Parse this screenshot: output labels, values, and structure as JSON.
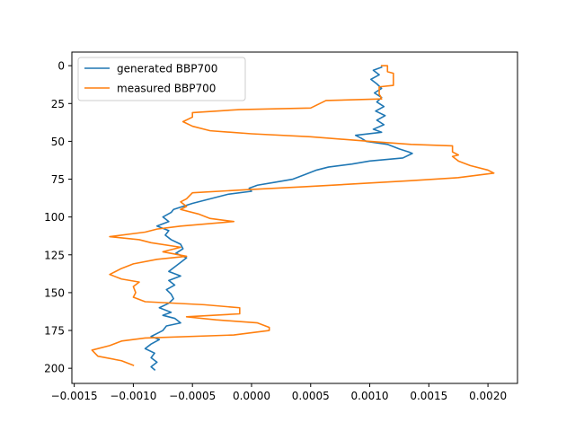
{
  "chart_data": {
    "type": "line",
    "title": "",
    "xlabel": "",
    "ylabel": "",
    "orientation": "depth-profile (y axis inverted)",
    "xlim": [
      -0.00152,
      0.00225
    ],
    "ylim": [
      210,
      -9
    ],
    "x_ticks": [
      -0.0015,
      -0.001,
      -0.0005,
      0.0,
      0.0005,
      0.001,
      0.0015,
      0.002
    ],
    "x_tick_labels": [
      "−0.0015",
      "−0.0010",
      "−0.0005",
      "0.0000",
      "0.0005",
      "0.0010",
      "0.0015",
      "0.0020"
    ],
    "y_ticks": [
      0,
      25,
      50,
      75,
      100,
      125,
      150,
      175,
      200
    ],
    "y_tick_labels": [
      "0",
      "25",
      "50",
      "75",
      "100",
      "125",
      "150",
      "175",
      "200"
    ],
    "grid": false,
    "legend_placement": "upper-left",
    "series": [
      {
        "name": "generated BBP700",
        "color": "#1f77b4",
        "points": [
          [
            0.0011,
            1
          ],
          [
            0.00103,
            3
          ],
          [
            0.00108,
            6
          ],
          [
            0.00101,
            9
          ],
          [
            0.00106,
            12
          ],
          [
            0.0011,
            15
          ],
          [
            0.00104,
            18
          ],
          [
            0.0011,
            21
          ],
          [
            0.00106,
            24
          ],
          [
            0.00112,
            27
          ],
          [
            0.00105,
            30
          ],
          [
            0.00113,
            33
          ],
          [
            0.00106,
            36
          ],
          [
            0.00112,
            39
          ],
          [
            0.00103,
            42
          ],
          [
            0.0011,
            44
          ],
          [
            0.00088,
            46
          ],
          [
            0.00093,
            48
          ],
          [
            0.00097,
            50
          ],
          [
            0.00115,
            52
          ],
          [
            0.00125,
            55
          ],
          [
            0.00133,
            57
          ],
          [
            0.00136,
            58
          ],
          [
            0.00128,
            61
          ],
          [
            0.001,
            63
          ],
          [
            0.00085,
            65
          ],
          [
            0.00065,
            67
          ],
          [
            0.00055,
            69
          ],
          [
            0.00045,
            72
          ],
          [
            0.00035,
            75
          ],
          [
            0.0002,
            77
          ],
          [
            5e-05,
            79
          ],
          [
            -2e-05,
            81
          ],
          [
            0.0,
            83
          ],
          [
            -0.0002,
            85
          ],
          [
            -0.0003,
            87
          ],
          [
            -0.0004,
            89
          ],
          [
            -0.0005,
            91
          ],
          [
            -0.00058,
            93
          ],
          [
            -0.00066,
            95
          ],
          [
            -0.00068,
            97
          ],
          [
            -0.00075,
            100
          ],
          [
            -0.0007,
            103
          ],
          [
            -0.0008,
            106
          ],
          [
            -0.0007,
            109
          ],
          [
            -0.00073,
            112
          ],
          [
            -0.00068,
            115
          ],
          [
            -0.0006,
            118
          ],
          [
            -0.00058,
            121
          ],
          [
            -0.00064,
            124
          ],
          [
            -0.00055,
            127
          ],
          [
            -0.0006,
            130
          ],
          [
            -0.00065,
            133
          ],
          [
            -0.0007,
            136
          ],
          [
            -0.0006,
            139
          ],
          [
            -0.0007,
            142
          ],
          [
            -0.00065,
            145
          ],
          [
            -0.00072,
            148
          ],
          [
            -0.00068,
            151
          ],
          [
            -0.00066,
            154
          ],
          [
            -0.0007,
            157
          ],
          [
            -0.00078,
            160
          ],
          [
            -0.00068,
            163
          ],
          [
            -0.00075,
            165
          ],
          [
            -0.00065,
            167
          ],
          [
            -0.0006,
            170
          ],
          [
            -0.00072,
            172
          ],
          [
            -0.00075,
            175
          ],
          [
            -0.0008,
            177
          ],
          [
            -0.00085,
            179
          ],
          [
            -0.00078,
            181
          ],
          [
            -0.00085,
            184
          ],
          [
            -0.0009,
            187
          ],
          [
            -0.00082,
            190
          ],
          [
            -0.00085,
            193
          ],
          [
            -0.0008,
            196
          ],
          [
            -0.00085,
            199
          ],
          [
            -0.00082,
            201
          ]
        ]
      },
      {
        "name": "measured BBP700",
        "color": "#ff7f0e",
        "points": [
          [
            0.0011,
            0
          ],
          [
            0.00115,
            0
          ],
          [
            0.00115,
            4
          ],
          [
            0.0012,
            5
          ],
          [
            0.0012,
            13
          ],
          [
            0.00108,
            14
          ],
          [
            0.00108,
            19
          ],
          [
            0.00109,
            20
          ],
          [
            0.0011,
            22
          ],
          [
            0.00063,
            23
          ],
          [
            0.0005,
            28
          ],
          [
            -0.0001,
            29
          ],
          [
            -0.0005,
            31
          ],
          [
            -0.0005,
            34
          ],
          [
            -0.00058,
            37
          ],
          [
            -0.0005,
            40
          ],
          [
            -0.00035,
            43
          ],
          [
            0.0,
            45
          ],
          [
            0.0005,
            47
          ],
          [
            0.001,
            50
          ],
          [
            0.00135,
            52
          ],
          [
            0.0017,
            53
          ],
          [
            0.0017,
            57
          ],
          [
            0.00175,
            59
          ],
          [
            0.0017,
            60
          ],
          [
            0.00175,
            63
          ],
          [
            0.00185,
            66
          ],
          [
            0.002,
            69
          ],
          [
            0.00205,
            71
          ],
          [
            0.00175,
            74
          ],
          [
            0.00135,
            76
          ],
          [
            0.0009,
            78
          ],
          [
            0.00045,
            80
          ],
          [
            -5e-05,
            82
          ],
          [
            -0.0005,
            84
          ],
          [
            -0.00055,
            88
          ],
          [
            -0.0006,
            90
          ],
          [
            -0.00055,
            93
          ],
          [
            -0.0006,
            95
          ],
          [
            -0.00045,
            98
          ],
          [
            -0.00035,
            101
          ],
          [
            -0.00015,
            103
          ],
          [
            -0.0006,
            106
          ],
          [
            -0.0008,
            108
          ],
          [
            -0.0009,
            110
          ],
          [
            -0.0012,
            113
          ],
          [
            -0.00095,
            115
          ],
          [
            -0.00085,
            117
          ],
          [
            -0.0006,
            120
          ],
          [
            -0.00075,
            123
          ],
          [
            -0.00055,
            126
          ],
          [
            -0.0008,
            128
          ],
          [
            -0.001,
            131
          ],
          [
            -0.0011,
            134
          ],
          [
            -0.0012,
            138
          ],
          [
            -0.0011,
            141
          ],
          [
            -0.00095,
            143
          ],
          [
            -0.001,
            146
          ],
          [
            -0.00098,
            150
          ],
          [
            -0.001,
            153
          ],
          [
            -0.0009,
            156
          ],
          [
            -0.0004,
            158
          ],
          [
            -0.0001,
            160
          ],
          [
            -0.0001,
            164
          ],
          [
            -0.00055,
            166
          ],
          [
            -0.0003,
            168
          ],
          [
            5e-05,
            170
          ],
          [
            0.00015,
            173
          ],
          [
            0.00015,
            175
          ],
          [
            -0.00015,
            178
          ],
          [
            -0.0009,
            180
          ],
          [
            -0.0011,
            182
          ],
          [
            -0.0012,
            185
          ],
          [
            -0.00135,
            188
          ],
          [
            -0.0013,
            192
          ],
          [
            -0.0011,
            195
          ],
          [
            -0.001,
            198
          ]
        ]
      }
    ]
  }
}
